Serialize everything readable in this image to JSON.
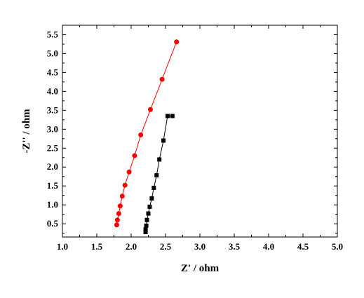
{
  "chart_data": {
    "type": "scatter",
    "xlabel": "Z' / ohm",
    "ylabel": "-Z'' / ohm",
    "xlim": [
      1.0,
      5.0
    ],
    "ylim": [
      0.15,
      5.75
    ],
    "xticks": [
      "1.0",
      "1.5",
      "2.0",
      "2.5",
      "3.0",
      "3.5",
      "4.0",
      "4.5",
      "5.0"
    ],
    "yticks": [
      "0.5",
      "1.0",
      "1.5",
      "2.0",
      "2.5",
      "3.0",
      "3.5",
      "4.0",
      "4.5",
      "5.0",
      "5.5"
    ],
    "grid": false,
    "series": [
      {
        "color": "#ff0000",
        "marker": "circle",
        "line": true,
        "x": [
          1.79,
          1.8,
          1.82,
          1.84,
          1.87,
          1.91,
          1.97,
          2.05,
          2.14,
          2.28,
          2.45,
          2.66
        ],
        "y": [
          0.47,
          0.6,
          0.77,
          0.97,
          1.23,
          1.52,
          1.87,
          2.3,
          2.85,
          3.52,
          4.32,
          5.31
        ]
      },
      {
        "color": "#000000",
        "marker": "square",
        "line": true,
        "x": [
          2.21,
          2.21,
          2.22,
          2.23,
          2.25,
          2.27,
          2.3,
          2.33,
          2.37,
          2.41,
          2.47,
          2.53,
          2.6
        ],
        "y": [
          0.28,
          0.35,
          0.45,
          0.6,
          0.77,
          0.95,
          1.17,
          1.45,
          1.78,
          2.2,
          2.7,
          3.35,
          3.35
        ]
      }
    ]
  }
}
